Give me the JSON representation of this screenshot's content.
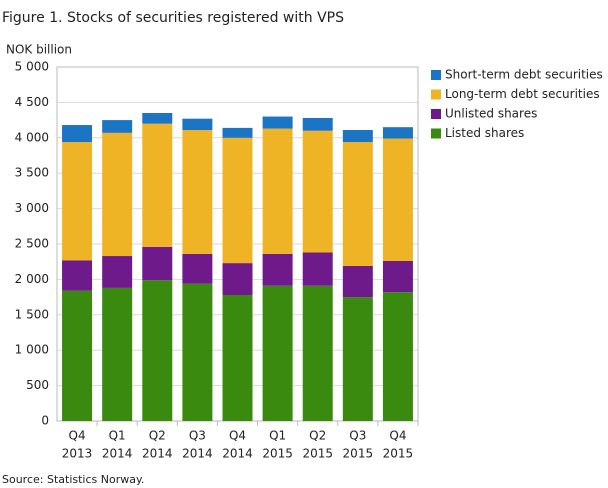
{
  "chart_data": {
    "type": "stacked_bar",
    "title": "Figure 1. Stocks of securities registered with VPS",
    "y_label": "NOK billion",
    "source": "Source: Statistics Norway.",
    "categories": [
      [
        "Q4",
        "2013"
      ],
      [
        "Q1",
        "2014"
      ],
      [
        "Q2",
        "2014"
      ],
      [
        "Q3",
        "2014"
      ],
      [
        "Q4",
        "2014"
      ],
      [
        "Q1",
        "2015"
      ],
      [
        "Q2",
        "2015"
      ],
      [
        "Q3",
        "2015"
      ],
      [
        "Q4",
        "2015"
      ]
    ],
    "series": [
      {
        "name": "Listed shares",
        "color": "#3a8a0f",
        "values": [
          1840,
          1880,
          1990,
          1940,
          1780,
          1910,
          1910,
          1750,
          1820
        ]
      },
      {
        "name": "Unlisted shares",
        "color": "#6e1a8a",
        "values": [
          430,
          450,
          470,
          420,
          450,
          450,
          470,
          440,
          440
        ]
      },
      {
        "name": "Long-term debt securities",
        "color": "#efb426",
        "values": [
          1670,
          1740,
          1740,
          1750,
          1770,
          1770,
          1720,
          1750,
          1730
        ]
      },
      {
        "name": "Short-term debt securities",
        "color": "#1c74c4",
        "values": [
          240,
          180,
          150,
          160,
          140,
          170,
          180,
          170,
          160
        ]
      }
    ],
    "ylim": [
      0,
      5000
    ],
    "yticks": [
      0,
      500,
      {
        "value": 1000,
        "label": "1 000"
      },
      {
        "value": 1500,
        "label": "1 500"
      },
      {
        "value": 2000,
        "label": "2 000"
      },
      {
        "value": 2500,
        "label": "2 500"
      },
      {
        "value": 3000,
        "label": "3 000"
      },
      {
        "value": 3500,
        "label": "3 500"
      },
      {
        "value": 4000,
        "label": "4 000"
      },
      {
        "value": 4500,
        "label": "4 500"
      },
      {
        "value": 5000,
        "label": "5 000"
      }
    ],
    "grid": true,
    "legend": "right"
  }
}
